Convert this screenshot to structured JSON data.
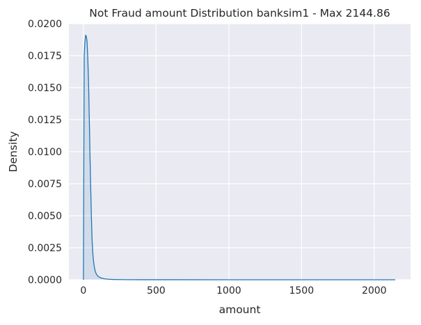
{
  "chart_data": {
    "type": "area",
    "title": "Not Fraud amount Distribution banksim1 - Max 2144.86",
    "xlabel": "amount",
    "ylabel": "Density",
    "xlim": [
      -100,
      2250
    ],
    "ylim": [
      0,
      0.02
    ],
    "x_ticks": [
      0,
      500,
      1000,
      1500,
      2000
    ],
    "x_tick_labels": [
      "0",
      "500",
      "1000",
      "1500",
      "2000"
    ],
    "y_ticks": [
      0,
      0.0025,
      0.005,
      0.0075,
      0.01,
      0.0125,
      0.015,
      0.0175,
      0.02
    ],
    "y_tick_labels": [
      "0.0000",
      "0.0025",
      "0.0050",
      "0.0075",
      "0.0100",
      "0.0125",
      "0.0150",
      "0.0175",
      "0.0200"
    ],
    "grid": true,
    "series": [
      {
        "color": "#1f77b4",
        "fill": "#1f77b4",
        "x": [
          0,
          5,
          10,
          15,
          20,
          25,
          30,
          35,
          40,
          45,
          50,
          55,
          60,
          65,
          70,
          75,
          80,
          85,
          90,
          100,
          110,
          120,
          130,
          150,
          175,
          200,
          250,
          300,
          400,
          600,
          1000,
          1500,
          2144.86
        ],
        "y": [
          0,
          0.0175,
          0.0185,
          0.0191,
          0.019,
          0.0186,
          0.0173,
          0.0155,
          0.0128,
          0.0098,
          0.0072,
          0.0048,
          0.003,
          0.002,
          0.0014,
          0.001,
          0.00072,
          0.00055,
          0.00042,
          0.00028,
          0.0002,
          0.00015,
          0.00011,
          7e-05,
          4e-05,
          2.5e-05,
          1.2e-05,
          7e-06,
          4e-06,
          2e-06,
          1e-06,
          5e-07,
          0
        ]
      }
    ]
  }
}
